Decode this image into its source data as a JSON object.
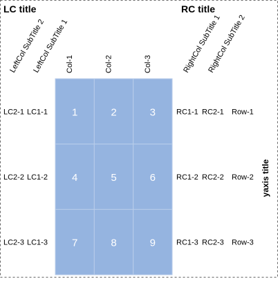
{
  "chart_data": {
    "type": "table",
    "left_title": "LC title",
    "right_title": "RC title",
    "yaxis_title": "yaxis title",
    "left_col_subtitles": [
      "LeftCol SubTitle 2",
      "LeftCol SubTitle 1"
    ],
    "right_col_subtitles": [
      "RightCol SubTitle 1",
      "RightCol SubTitle 2"
    ],
    "columns": [
      "Col-1",
      "Col-2",
      "Col-3"
    ],
    "rows": [
      "Row-1",
      "Row-2",
      "Row-3"
    ],
    "values": [
      [
        1,
        2,
        3
      ],
      [
        4,
        5,
        6
      ],
      [
        7,
        8,
        9
      ]
    ],
    "left_labels": [
      [
        "LC2-1",
        "LC1-1"
      ],
      [
        "LC2-2",
        "LC1-2"
      ],
      [
        "LC2-3",
        "LC1-3"
      ]
    ],
    "right_labels": [
      [
        "RC1-1",
        "RC2-1"
      ],
      [
        "RC1-2",
        "RC2-2"
      ],
      [
        "RC1-3",
        "RC2-3"
      ]
    ],
    "cell_color": "#95b4e0",
    "cell_text_color": "#ffffff",
    "grid_line_color": "#b9cdea",
    "frame_color": "#666666"
  }
}
